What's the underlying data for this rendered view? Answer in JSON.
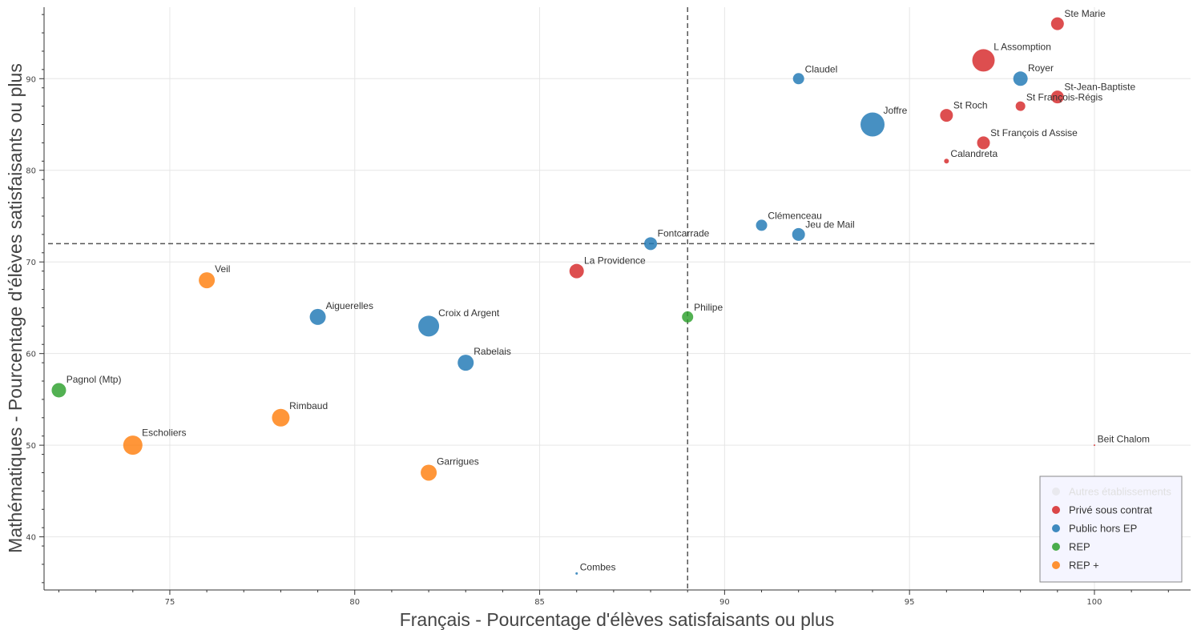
{
  "chart_data": {
    "type": "scatter",
    "title": "",
    "xlabel": "Français - Pourcentage d'élèves satisfaisants ou plus",
    "ylabel": "Mathématiques - Pourcentage d'élèves satisfaisants ou plus",
    "xlim": [
      71.6,
      102.6
    ],
    "ylim": [
      34.2,
      97.8
    ],
    "xticks": [
      75,
      80,
      85,
      90,
      95,
      100
    ],
    "yticks": [
      40,
      50,
      60,
      70,
      80,
      90
    ],
    "grid": true,
    "reference_lines": {
      "x": 89,
      "y": 72
    },
    "legend_position": "bottom-right",
    "series": [
      {
        "name": "Autres établissements",
        "color": "#dddddd",
        "muted": true,
        "points": []
      },
      {
        "name": "Privé sous contrat",
        "color": "#d62728",
        "points": [
          {
            "label": "Ste Marie",
            "x": 99,
            "y": 96,
            "size": 8
          },
          {
            "label": "L Assomption",
            "x": 97,
            "y": 92,
            "size": 14
          },
          {
            "label": "St-Jean-Baptiste",
            "x": 99,
            "y": 88,
            "size": 8
          },
          {
            "label": "St François-Régis",
            "x": 98,
            "y": 87,
            "size": 6
          },
          {
            "label": "St Roch",
            "x": 96,
            "y": 86,
            "size": 8
          },
          {
            "label": "St François d Assise",
            "x": 97,
            "y": 83,
            "size": 8
          },
          {
            "label": "Calandreta",
            "x": 96,
            "y": 81,
            "size": 3
          },
          {
            "label": "La Providence",
            "x": 86,
            "y": 69,
            "size": 9
          },
          {
            "label": "Beit Chalom",
            "x": 100,
            "y": 50,
            "size": 1
          }
        ]
      },
      {
        "name": "Public hors EP",
        "color": "#1f77b4",
        "points": [
          {
            "label": "Claudel",
            "x": 92,
            "y": 90,
            "size": 7
          },
          {
            "label": "Royer",
            "x": 98,
            "y": 90,
            "size": 9
          },
          {
            "label": "Joffre",
            "x": 94,
            "y": 85,
            "size": 15
          },
          {
            "label": "Clémenceau",
            "x": 91,
            "y": 74,
            "size": 7
          },
          {
            "label": "Jeu de Mail",
            "x": 92,
            "y": 73,
            "size": 8
          },
          {
            "label": "Fontcarrade",
            "x": 88,
            "y": 72,
            "size": 8
          },
          {
            "label": "Aiguerelles",
            "x": 79,
            "y": 64,
            "size": 10
          },
          {
            "label": "Croix d Argent",
            "x": 82,
            "y": 63,
            "size": 13
          },
          {
            "label": "Rabelais",
            "x": 83,
            "y": 59,
            "size": 10
          },
          {
            "label": "Combes",
            "x": 86,
            "y": 36,
            "size": 1.5
          }
        ]
      },
      {
        "name": "REP",
        "color": "#2ca02c",
        "points": [
          {
            "label": "Philipe",
            "x": 89,
            "y": 64,
            "size": 7
          },
          {
            "label": "Pagnol (Mtp)",
            "x": 72,
            "y": 56,
            "size": 9
          }
        ]
      },
      {
        "name": "REP +",
        "color": "#ff7f0e",
        "points": [
          {
            "label": "Veil",
            "x": 76,
            "y": 68,
            "size": 10
          },
          {
            "label": "Rimbaud",
            "x": 78,
            "y": 53,
            "size": 11
          },
          {
            "label": "Escholiers",
            "x": 74,
            "y": 50,
            "size": 12
          },
          {
            "label": "Garrigues",
            "x": 82,
            "y": 47,
            "size": 10
          }
        ]
      }
    ]
  }
}
